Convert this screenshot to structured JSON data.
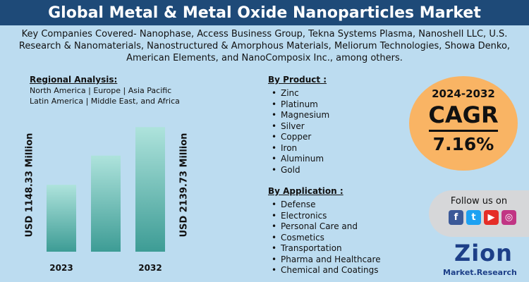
{
  "title": "Global Metal & Metal Oxide Nanoparticles Market",
  "companies": "Key Companies Covered- Nanophase, Access Business Group, Tekna Systems Plasma, Nanoshell LLC, U.S. Research & Nanomaterials, Nanostructured & Amorphous Materials, Meliorum Technologies, Showa Denko, American Elements, and NanoComposix Inc., among others.",
  "region": {
    "heading": "Regional Analysis:",
    "line1": "North America | Europe | Asia Pacific",
    "line2": "Latin America | Middle East, and Africa"
  },
  "products": {
    "heading": "By Product :",
    "items": [
      "Zinc",
      "Platinum",
      "Magnesium",
      "Silver",
      "Copper",
      "Iron",
      "Aluminum",
      "Gold"
    ]
  },
  "applications": {
    "heading": "By Application :",
    "items": [
      "Defense",
      "Electronics",
      "Personal Care and",
      "Cosmetics",
      "Transportation",
      "Pharma and Healthcare",
      "Chemical and Coatings"
    ]
  },
  "cagr": {
    "years": "2024-2032",
    "label": "CAGR",
    "value": "7.16%"
  },
  "follow": {
    "text": "Follow us on",
    "icons": [
      {
        "name": "facebook-icon",
        "glyph": "f",
        "color": "#3b5998"
      },
      {
        "name": "twitter-icon",
        "glyph": "t",
        "color": "#1da1f2"
      },
      {
        "name": "youtube-icon",
        "glyph": "▶",
        "color": "#e52d27"
      },
      {
        "name": "instagram-icon",
        "glyph": "◎",
        "color": "#c13584"
      }
    ]
  },
  "logo": {
    "main": "Zion",
    "sub": "Market.Research"
  },
  "colors": {
    "background": "#bcdcf0",
    "title_band": "#1e4a78",
    "bar_top": "#aee3dc",
    "bar_bottom": "#3d9c95",
    "cagr_circle": "#f9b464"
  },
  "chart_data": {
    "type": "bar",
    "categories": [
      "2023",
      "",
      "2032"
    ],
    "values": [
      1148.33,
      1650,
      2139.73
    ],
    "value_labels": [
      "USD 1148.33 Million",
      "",
      "USD 2139.73 Million"
    ],
    "ylim": [
      0,
      2300
    ],
    "xlabel": "",
    "ylabel": ""
  }
}
